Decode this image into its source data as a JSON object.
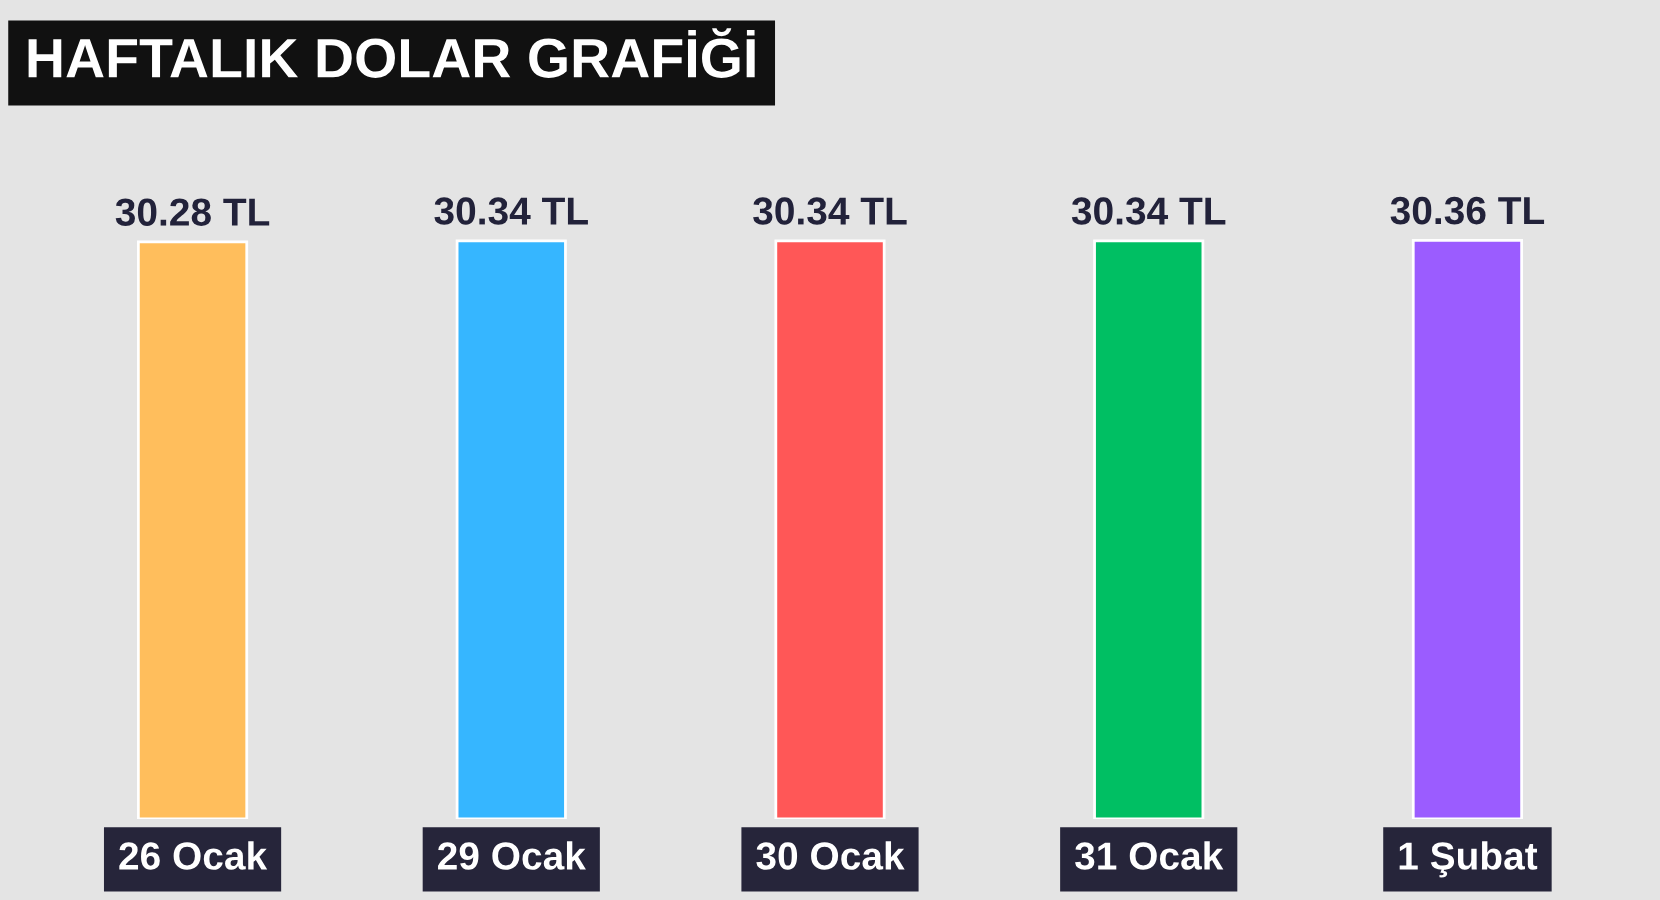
{
  "chart_data": {
    "type": "bar",
    "title": "HAFTALIK DOLAR GRAFİĞİ",
    "categories": [
      "26 Ocak",
      "29 Ocak",
      "30 Ocak",
      "31 Ocak",
      "1 Şubat"
    ],
    "values": [
      30.28,
      30.34,
      30.34,
      30.34,
      30.36
    ],
    "colors": [
      "#ffbe5c",
      "#36b6ff",
      "#ff5757",
      "#00bf63",
      "#9b5cff"
    ],
    "value_labels": [
      "30.28 TL",
      "30.34 TL",
      "30.34 TL",
      "30.34 TL",
      "30.36 TL"
    ],
    "grid": false,
    "legend": false
  }
}
